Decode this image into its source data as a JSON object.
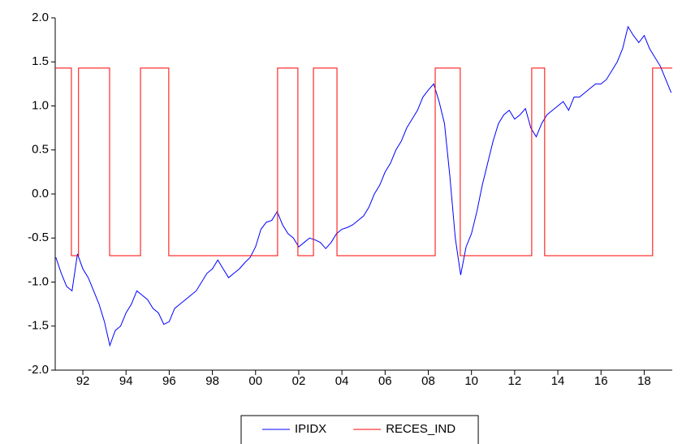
{
  "chart_data": {
    "type": "line",
    "xlim": [
      1990.72,
      2019.3
    ],
    "xticks": [
      {
        "value": 1992,
        "label": "92"
      },
      {
        "value": 1994,
        "label": "94"
      },
      {
        "value": 1996,
        "label": "96"
      },
      {
        "value": 1998,
        "label": "98"
      },
      {
        "value": 2000,
        "label": "00"
      },
      {
        "value": 2002,
        "label": "02"
      },
      {
        "value": 2004,
        "label": "04"
      },
      {
        "value": 2006,
        "label": "06"
      },
      {
        "value": 2008,
        "label": "08"
      },
      {
        "value": 2010,
        "label": "10"
      },
      {
        "value": 2012,
        "label": "12"
      },
      {
        "value": 2014,
        "label": "14"
      },
      {
        "value": 2016,
        "label": "16"
      },
      {
        "value": 2018,
        "label": "18"
      }
    ],
    "ylim": [
      -2,
      2
    ],
    "yticks": [
      {
        "value": -2,
        "label": "-2.0"
      },
      -1.5,
      {
        "value": -1,
        "label": "-1.0"
      },
      -0.5,
      {
        "value": 0,
        "label": "0.0"
      },
      0.5,
      {
        "value": 1,
        "label": "1.0"
      },
      1.5,
      {
        "value": 2,
        "label": "2.0"
      }
    ],
    "grid": false,
    "legend": "bottom",
    "series": [
      {
        "name": "IPIDX",
        "color": "#0000ff",
        "x": [
          1990.75,
          1991,
          1991.25,
          1991.5,
          1991.75,
          1992,
          1992.25,
          1992.5,
          1992.75,
          1993,
          1993.25,
          1993.5,
          1993.75,
          1994,
          1994.25,
          1994.5,
          1994.75,
          1995,
          1995.25,
          1995.5,
          1995.75,
          1996,
          1996.25,
          1996.5,
          1996.75,
          1997,
          1997.25,
          1997.5,
          1997.75,
          1998,
          1998.25,
          1998.5,
          1998.75,
          1999,
          1999.25,
          1999.5,
          1999.75,
          2000,
          2000.25,
          2000.5,
          2000.75,
          2001,
          2001.25,
          2001.5,
          2001.75,
          2002,
          2002.25,
          2002.5,
          2002.75,
          2003,
          2003.25,
          2003.5,
          2003.75,
          2004,
          2004.25,
          2004.5,
          2004.75,
          2005,
          2005.25,
          2005.5,
          2005.75,
          2006,
          2006.25,
          2006.5,
          2006.75,
          2007,
          2007.25,
          2007.5,
          2007.75,
          2008,
          2008.25,
          2008.5,
          2008.75,
          2009,
          2009.25,
          2009.5,
          2009.75,
          2010,
          2010.25,
          2010.5,
          2010.75,
          2011,
          2011.25,
          2011.5,
          2011.75,
          2012,
          2012.25,
          2012.5,
          2012.75,
          2013,
          2013.25,
          2013.5,
          2013.75,
          2014,
          2014.25,
          2014.5,
          2014.75,
          2015,
          2015.25,
          2015.5,
          2015.75,
          2016,
          2016.25,
          2016.5,
          2016.75,
          2017,
          2017.25,
          2017.5,
          2017.75,
          2018,
          2018.25,
          2018.5,
          2018.75,
          2019,
          2019.25
        ],
        "values": [
          -0.72,
          -0.9,
          -1.05,
          -1.1,
          -0.68,
          -0.85,
          -0.95,
          -1.1,
          -1.25,
          -1.45,
          -1.72,
          -1.55,
          -1.5,
          -1.35,
          -1.25,
          -1.1,
          -1.15,
          -1.2,
          -1.3,
          -1.35,
          -1.48,
          -1.45,
          -1.3,
          -1.25,
          -1.2,
          -1.15,
          -1.1,
          -1.0,
          -0.9,
          -0.85,
          -0.75,
          -0.85,
          -0.95,
          -0.9,
          -0.85,
          -0.78,
          -0.72,
          -0.6,
          -0.4,
          -0.32,
          -0.3,
          -0.2,
          -0.35,
          -0.45,
          -0.5,
          -0.6,
          -0.55,
          -0.5,
          -0.52,
          -0.55,
          -0.62,
          -0.55,
          -0.45,
          -0.4,
          -0.38,
          -0.35,
          -0.3,
          -0.25,
          -0.15,
          0.0,
          0.1,
          0.25,
          0.35,
          0.5,
          0.6,
          0.75,
          0.85,
          0.95,
          1.1,
          1.18,
          1.25,
          1.05,
          0.8,
          0.2,
          -0.5,
          -0.92,
          -0.6,
          -0.45,
          -0.2,
          0.1,
          0.35,
          0.6,
          0.8,
          0.9,
          0.95,
          0.85,
          0.9,
          0.97,
          0.75,
          0.65,
          0.8,
          0.9,
          0.95,
          1.0,
          1.05,
          0.95,
          1.1,
          1.1,
          1.15,
          1.2,
          1.25,
          1.25,
          1.3,
          1.4,
          1.5,
          1.65,
          1.9,
          1.8,
          1.72,
          1.8,
          1.65,
          1.55,
          1.45,
          1.3,
          1.15
        ]
      },
      {
        "name": "RECES_IND",
        "color": "#ff0000",
        "x": [
          1990.72,
          1991.47,
          1991.47,
          1991.8,
          1991.8,
          1993.24,
          1993.24,
          1994.67,
          1994.67,
          1995.98,
          1995.98,
          2001.02,
          2001.02,
          2001.96,
          2001.96,
          2002.68,
          2002.68,
          2003.77,
          2003.77,
          2008.32,
          2008.32,
          2009.48,
          2009.48,
          2012.79,
          2012.79,
          2013.39,
          2013.39,
          2018.39,
          2018.39,
          2019.3
        ],
        "values": [
          1.43,
          1.43,
          -0.7,
          -0.7,
          1.43,
          1.43,
          -0.7,
          -0.7,
          1.43,
          1.43,
          -0.7,
          -0.7,
          1.43,
          1.43,
          -0.7,
          -0.7,
          1.43,
          1.43,
          -0.7,
          -0.7,
          1.43,
          1.43,
          -0.7,
          -0.7,
          1.43,
          1.43,
          -0.7,
          -0.7,
          1.43,
          1.43
        ]
      }
    ]
  }
}
